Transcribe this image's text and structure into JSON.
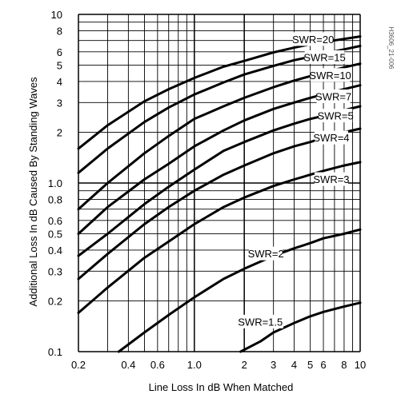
{
  "chart_data": {
    "type": "line",
    "xlabel": "Line Loss In dB When Matched",
    "ylabel": "Additional Loss In dB Caused By Standing Waves",
    "x_scale": "log",
    "y_scale": "log",
    "xlim": [
      0.2,
      10
    ],
    "ylim": [
      0.1,
      10
    ],
    "grid": true,
    "x_ticks": [
      0.2,
      0.4,
      0.6,
      1.0,
      2,
      3,
      4,
      5,
      6,
      8,
      10
    ],
    "x_tick_labels": [
      "0.2",
      "0.4",
      "0.6",
      "1.0",
      "2",
      "3",
      "4",
      "5",
      "6",
      "8",
      "10"
    ],
    "y_ticks": [
      0.1,
      0.2,
      0.3,
      0.4,
      0.5,
      0.6,
      0.8,
      1.0,
      2,
      3,
      4,
      5,
      6,
      8,
      10
    ],
    "y_tick_labels": [
      "0.1",
      "0.2",
      "0.3",
      "0.4",
      "0.5",
      "0.6",
      "0.8",
      "1.0",
      "2",
      "3",
      "4",
      "5",
      "6",
      "8",
      "10"
    ],
    "series": [
      {
        "name": "SWR=20",
        "label": "SWR=20",
        "x": [
          0.2,
          0.3,
          0.5,
          0.7,
          1.0,
          1.5,
          2,
          3,
          4,
          5,
          6,
          8,
          10
        ],
        "values": [
          1.6,
          2.2,
          3.05,
          3.6,
          4.2,
          4.9,
          5.3,
          5.95,
          6.35,
          6.65,
          6.85,
          7.15,
          7.4
        ]
      },
      {
        "name": "SWR=15",
        "label": "SWR=15",
        "x": [
          0.2,
          0.3,
          0.5,
          0.7,
          1.0,
          1.5,
          2,
          3,
          4,
          5,
          6,
          8,
          10
        ],
        "values": [
          1.15,
          1.6,
          2.3,
          2.8,
          3.35,
          3.95,
          4.4,
          4.95,
          5.35,
          5.6,
          5.85,
          6.2,
          6.5
        ]
      },
      {
        "name": "SWR=10",
        "label": "SWR=10",
        "x": [
          0.2,
          0.3,
          0.5,
          0.7,
          1.0,
          1.5,
          2,
          3,
          4,
          5,
          6,
          8,
          10
        ],
        "values": [
          0.7,
          1.0,
          1.5,
          1.9,
          2.4,
          2.85,
          3.2,
          3.7,
          4.05,
          4.3,
          4.5,
          4.85,
          5.1
        ]
      },
      {
        "name": "SWR=7",
        "label": "SWR=7",
        "x": [
          0.2,
          0.3,
          0.5,
          0.7,
          1.0,
          1.5,
          2,
          3,
          4,
          5,
          6,
          8,
          10
        ],
        "values": [
          0.5,
          0.72,
          1.05,
          1.3,
          1.65,
          2.05,
          2.35,
          2.75,
          3.0,
          3.2,
          3.35,
          3.6,
          3.8
        ]
      },
      {
        "name": "SWR=5",
        "label": "SWR=5",
        "x": [
          0.2,
          0.3,
          0.5,
          0.7,
          1.0,
          1.5,
          2,
          3,
          4,
          5,
          6,
          8,
          10
        ],
        "values": [
          0.37,
          0.5,
          0.75,
          0.95,
          1.2,
          1.55,
          1.75,
          2.05,
          2.25,
          2.4,
          2.5,
          2.7,
          2.85
        ]
      },
      {
        "name": "SWR=4",
        "label": "SWR=4",
        "x": [
          0.2,
          0.3,
          0.5,
          0.7,
          1.0,
          1.5,
          2,
          3,
          4,
          5,
          6,
          8,
          10
        ],
        "values": [
          0.27,
          0.38,
          0.57,
          0.72,
          0.9,
          1.12,
          1.27,
          1.5,
          1.65,
          1.75,
          1.85,
          2.0,
          2.1
        ]
      },
      {
        "name": "SWR=3",
        "label": "SWR=3",
        "x": [
          0.2,
          0.3,
          0.5,
          0.7,
          1.0,
          1.5,
          2,
          3,
          4,
          5,
          6,
          8,
          10
        ],
        "values": [
          0.17,
          0.24,
          0.36,
          0.45,
          0.57,
          0.72,
          0.82,
          0.96,
          1.05,
          1.12,
          1.18,
          1.27,
          1.33
        ]
      },
      {
        "name": "SWR=2",
        "label": "SWR=2",
        "x": [
          0.35,
          0.5,
          0.7,
          1.0,
          1.5,
          2,
          3,
          4,
          5,
          6,
          8,
          10
        ],
        "values": [
          0.1,
          0.13,
          0.165,
          0.21,
          0.27,
          0.31,
          0.37,
          0.41,
          0.44,
          0.47,
          0.5,
          0.53
        ]
      },
      {
        "name": "SWR=1.5",
        "label": "SWR=1.5",
        "x": [
          1.9,
          2.5,
          3,
          4,
          5,
          6,
          8,
          10
        ],
        "values": [
          0.1,
          0.115,
          0.13,
          0.148,
          0.162,
          0.172,
          0.185,
          0.195
        ]
      }
    ]
  },
  "figure_id": "H3606_21-006"
}
